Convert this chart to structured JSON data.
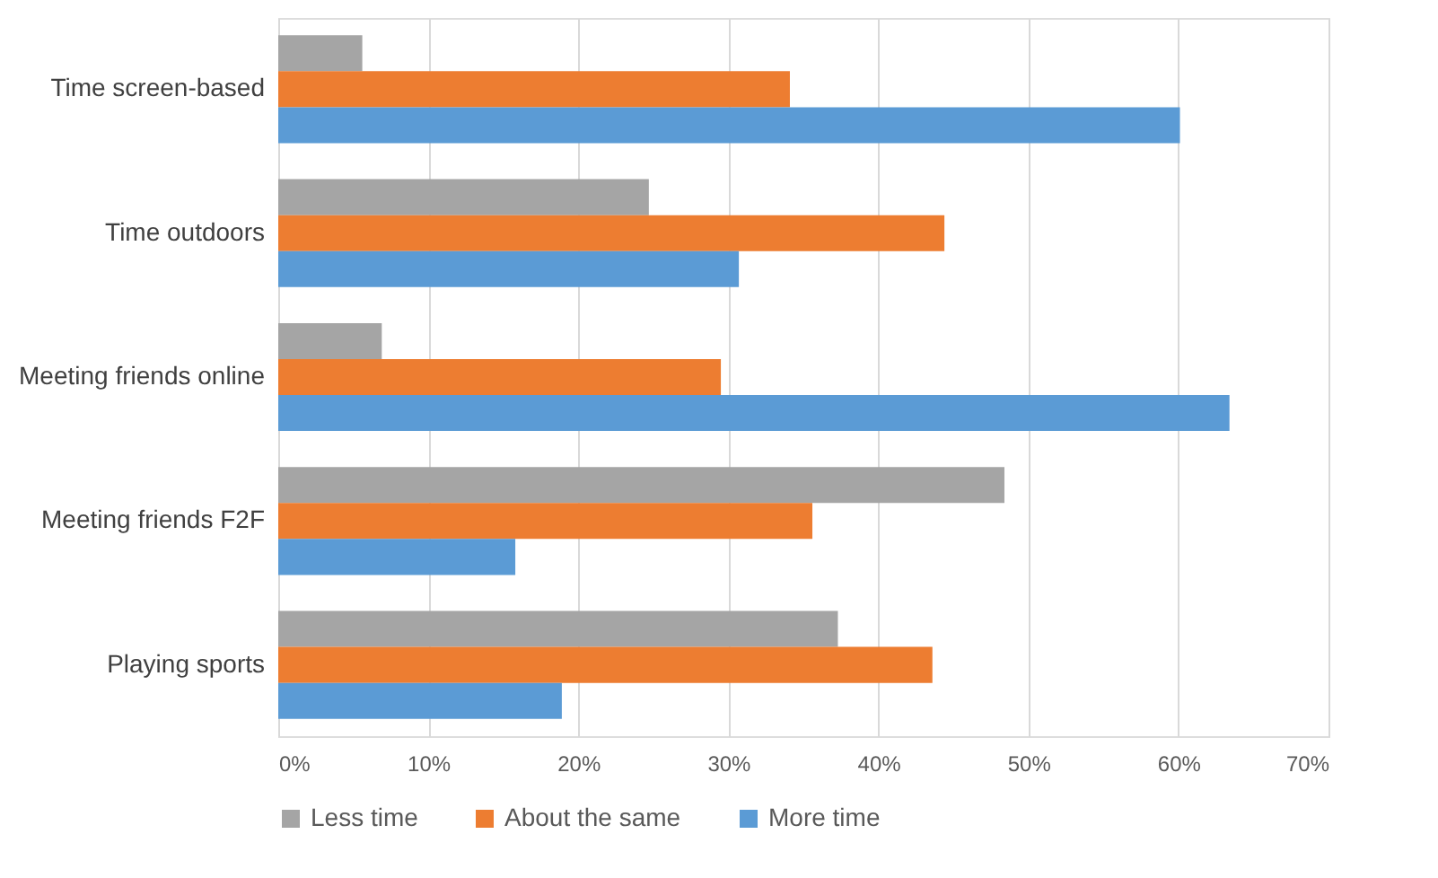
{
  "chart_data": {
    "type": "bar",
    "orientation": "horizontal",
    "categories": [
      "Time screen-based",
      "Time outdoors",
      "Meeting friends online",
      "Meeting friends F2F",
      "Playing sports"
    ],
    "series": [
      {
        "name": "Less time",
        "color": "#a5a5a5",
        "values": [
          5.6,
          24.7,
          6.9,
          48.4,
          37.3
        ]
      },
      {
        "name": "About the same",
        "color": "#ed7d31",
        "values": [
          34.1,
          44.4,
          29.5,
          35.6,
          43.6
        ]
      },
      {
        "name": "More time",
        "color": "#5b9bd5",
        "values": [
          60.1,
          30.7,
          63.4,
          15.8,
          18.9
        ]
      }
    ],
    "xlim": [
      0,
      70
    ],
    "xticks": [
      {
        "value": 0,
        "label": "0%"
      },
      {
        "value": 10,
        "label": "10%"
      },
      {
        "value": 20,
        "label": "20%"
      },
      {
        "value": 30,
        "label": "30%"
      },
      {
        "value": 40,
        "label": "40%"
      },
      {
        "value": 50,
        "label": "50%"
      },
      {
        "value": 60,
        "label": "60%"
      },
      {
        "value": 70,
        "label": "70%"
      }
    ],
    "grid": "x",
    "legend": "bottom"
  }
}
